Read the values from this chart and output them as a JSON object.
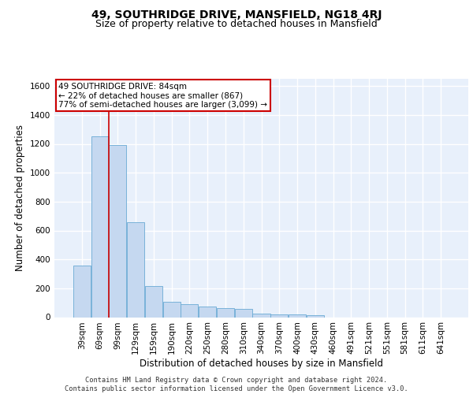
{
  "title": "49, SOUTHRIDGE DRIVE, MANSFIELD, NG18 4RJ",
  "subtitle": "Size of property relative to detached houses in Mansfield",
  "xlabel": "Distribution of detached houses by size in Mansfield",
  "ylabel": "Number of detached properties",
  "annotation_line1": "49 SOUTHRIDGE DRIVE: 84sqm",
  "annotation_line2": "← 22% of detached houses are smaller (867)",
  "annotation_line3": "77% of semi-detached houses are larger (3,099) →",
  "footer_line1": "Contains HM Land Registry data © Crown copyright and database right 2024.",
  "footer_line2": "Contains public sector information licensed under the Open Government Licence v3.0.",
  "categories": [
    "39sqm",
    "69sqm",
    "99sqm",
    "129sqm",
    "159sqm",
    "190sqm",
    "220sqm",
    "250sqm",
    "280sqm",
    "310sqm",
    "340sqm",
    "370sqm",
    "400sqm",
    "430sqm",
    "460sqm",
    "491sqm",
    "521sqm",
    "551sqm",
    "581sqm",
    "611sqm",
    "641sqm"
  ],
  "values": [
    355,
    1250,
    1190,
    655,
    215,
    105,
    90,
    75,
    65,
    60,
    22,
    20,
    20,
    15,
    0,
    0,
    0,
    0,
    0,
    0,
    0
  ],
  "bar_color": "#c5d8f0",
  "bar_edge_color": "#6aaad4",
  "red_line_x": 1.5,
  "ylim": [
    0,
    1650
  ],
  "yticks": [
    0,
    200,
    400,
    600,
    800,
    1000,
    1200,
    1400,
    1600
  ],
  "bg_color": "#e8f0fb",
  "grid_color": "#ffffff",
  "annotation_box_facecolor": "#ffffff",
  "annotation_box_edgecolor": "#cc0000",
  "title_fontsize": 10,
  "subtitle_fontsize": 9,
  "axis_label_fontsize": 8.5,
  "tick_fontsize": 7.5,
  "footer_fontsize": 6.2,
  "annotation_fontsize": 7.5
}
